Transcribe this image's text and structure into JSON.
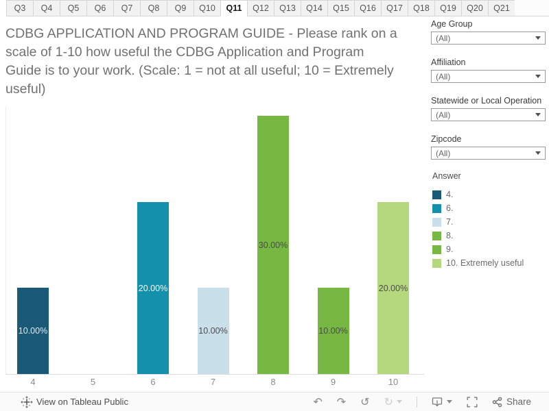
{
  "tabs": {
    "items": [
      "Q3",
      "Q4",
      "Q5",
      "Q6",
      "Q7",
      "Q8",
      "Q9",
      "Q10",
      "Q11",
      "Q12",
      "Q13",
      "Q14",
      "Q15",
      "Q16",
      "Q17",
      "Q18",
      "Q19",
      "Q20",
      "Q21"
    ],
    "active": "Q11"
  },
  "title_lines": [
    "CDBG APPLICATION AND PROGRAM GUIDE - Please rank on a",
    "scale of 1-10 how useful the CDBG Application and Program",
    "Guide is to your work. (Scale: 1 = not at all useful; 10 = Extremely",
    "useful)"
  ],
  "title_full": "CDBG APPLICATION AND PROGRAM GUIDE - Please rank on a scale of 1-10 how useful the CDBG Application and Program Guide is to your work. (Scale: 1 = not at all useful; 10 = Extremely useful)",
  "filters": [
    {
      "label": "Age Group",
      "value": "(All)"
    },
    {
      "label": "Affiliation",
      "value": "(All)"
    },
    {
      "label": "Statewide or Local Operation",
      "value": "(All)"
    },
    {
      "label": "Zipcode",
      "value": "(All)"
    }
  ],
  "legend": {
    "title": "Answer",
    "items": [
      {
        "label": "4.",
        "color": "#1a5a77"
      },
      {
        "label": "6.",
        "color": "#1590ac"
      },
      {
        "label": "7.",
        "color": "#c9dfe9"
      },
      {
        "label": "8.",
        "color": "#77b843"
      },
      {
        "label": "9.",
        "color": "#77b843"
      },
      {
        "label": "10. Extremely useful",
        "color": "#b5d87e"
      }
    ]
  },
  "chart_data": {
    "type": "bar",
    "title": "Percent of respondents by usefulness rating (Answer)",
    "categories": [
      "4",
      "5",
      "6",
      "7",
      "8",
      "9",
      "10"
    ],
    "values": [
      10,
      0,
      20,
      10,
      30,
      10,
      20
    ],
    "labels": [
      "10.00%",
      "",
      "20.00%",
      "10.00%",
      "30.00%",
      "10.00%",
      "20.00%"
    ],
    "colors": [
      "#1a5a77",
      "",
      "#1590ac",
      "#c9dfe9",
      "#77b843",
      "#77b843",
      "#b5d87e"
    ],
    "label_colors": [
      "#e3eaef",
      "",
      "#f4f9fa",
      "#4b4b4b",
      "#4b4b4b",
      "#4b4b4b",
      "#4b4b4b"
    ],
    "xlabel": "",
    "ylabel": "",
    "ylim": [
      0,
      31
    ],
    "grid": false,
    "legend_position": "right"
  },
  "toolbar": {
    "view_label": "View on Tableau Public",
    "undo_icon": "↶",
    "redo_icon": "↷",
    "reset_icon": "↺",
    "refresh_icon": "↻",
    "share_label": "Share"
  }
}
